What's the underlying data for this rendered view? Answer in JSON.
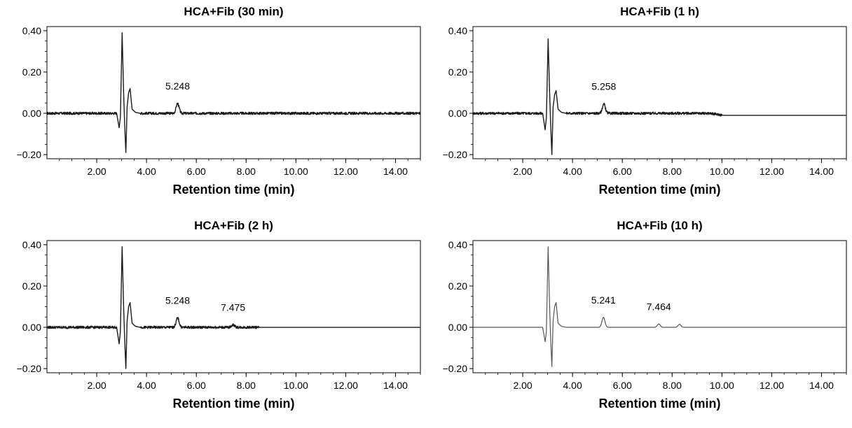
{
  "chart_data": [
    {
      "type": "line",
      "title": "HCA+Fib (30 min)",
      "xlabel": "Retention time (min)",
      "ylabel": "",
      "xlim": [
        0,
        15
      ],
      "ylim": [
        -0.22,
        0.42
      ],
      "xticks": [
        "2.00",
        "4.00",
        "6.00",
        "8.00",
        "10.00",
        "12.00",
        "14.00"
      ],
      "yticks": [
        "0.40",
        "0.20",
        "0.00",
        "−0.20"
      ],
      "noise_until": 15.0,
      "peaks": [
        {
          "x": 5.248,
          "y": 0.048,
          "label": "5.248"
        }
      ],
      "annotations": [
        "5.248"
      ],
      "x": [
        0.0,
        2.8,
        2.9,
        2.95,
        3.02,
        3.08,
        3.12,
        3.17,
        3.22,
        3.28,
        3.34,
        3.42,
        3.55,
        3.75,
        5.248,
        15.0
      ],
      "y": [
        0.0,
        0.0,
        -0.07,
        -0.02,
        0.39,
        0.1,
        -0.05,
        -0.19,
        0.03,
        0.1,
        0.12,
        0.02,
        0.005,
        0.0,
        0.048,
        0.0
      ]
    },
    {
      "type": "line",
      "title": "HCA+Fib (1 h)",
      "xlabel": "Retention time (min)",
      "ylabel": "",
      "xlim": [
        0,
        15
      ],
      "ylim": [
        -0.22,
        0.42
      ],
      "xticks": [
        "2.00",
        "4.00",
        "6.00",
        "8.00",
        "10.00",
        "12.00",
        "14.00"
      ],
      "yticks": [
        "0.40",
        "0.20",
        "0.00",
        "−0.20"
      ],
      "noise_until": 10.0,
      "peaks": [
        {
          "x": 5.258,
          "y": 0.045,
          "label": "5.258"
        }
      ],
      "annotations": [
        "5.258"
      ],
      "x": [
        0.0,
        2.8,
        2.9,
        2.95,
        3.02,
        3.08,
        3.12,
        3.17,
        3.22,
        3.28,
        3.34,
        3.42,
        3.55,
        3.75,
        5.258,
        10.0,
        15.0
      ],
      "y": [
        0.0,
        0.0,
        -0.08,
        -0.02,
        0.36,
        0.1,
        -0.05,
        -0.2,
        0.03,
        0.09,
        0.11,
        0.02,
        0.005,
        0.0,
        0.045,
        -0.01,
        -0.01
      ]
    },
    {
      "type": "line",
      "title": "HCA+Fib (2 h)",
      "xlabel": "Retention time (min)",
      "ylabel": "",
      "xlim": [
        0,
        15
      ],
      "ylim": [
        -0.22,
        0.42
      ],
      "xticks": [
        "2.00",
        "4.00",
        "6.00",
        "8.00",
        "10.00",
        "12.00",
        "14.00"
      ],
      "yticks": [
        "0.40",
        "0.20",
        "0.00",
        "−0.20"
      ],
      "noise_until": 8.5,
      "peaks": [
        {
          "x": 5.248,
          "y": 0.045,
          "label": "5.248"
        },
        {
          "x": 7.475,
          "y": 0.012,
          "label": "7.475"
        }
      ],
      "annotations": [
        "5.248",
        "7.475"
      ],
      "x": [
        0.0,
        2.8,
        2.9,
        2.95,
        3.02,
        3.08,
        3.12,
        3.17,
        3.22,
        3.28,
        3.34,
        3.42,
        3.55,
        3.75,
        5.248,
        7.475,
        15.0
      ],
      "y": [
        0.0,
        0.0,
        -0.08,
        -0.02,
        0.39,
        0.1,
        -0.05,
        -0.2,
        0.03,
        0.1,
        0.12,
        0.02,
        0.005,
        0.0,
        0.045,
        0.012,
        0.0
      ]
    },
    {
      "type": "line",
      "title": "HCA+Fib (10 h)",
      "xlabel": "Retention time (min)",
      "ylabel": "",
      "xlim": [
        0,
        15
      ],
      "ylim": [
        -0.22,
        0.42
      ],
      "xticks": [
        "2.00",
        "4.00",
        "6.00",
        "8.00",
        "10.00",
        "12.00",
        "14.00"
      ],
      "yticks": [
        "0.40",
        "0.20",
        "0.00",
        "−0.20"
      ],
      "noise_until": 0,
      "peaks": [
        {
          "x": 5.241,
          "y": 0.048,
          "label": "5.241"
        },
        {
          "x": 7.464,
          "y": 0.016,
          "label": "7.464"
        },
        {
          "x": 8.3,
          "y": 0.014,
          "label": ""
        }
      ],
      "annotations": [
        "5.241",
        "7.464"
      ],
      "x": [
        0.0,
        2.8,
        2.9,
        2.95,
        3.02,
        3.08,
        3.12,
        3.17,
        3.22,
        3.28,
        3.34,
        3.42,
        3.55,
        3.75,
        5.241,
        7.464,
        8.3,
        15.0
      ],
      "y": [
        0.0,
        0.0,
        -0.07,
        -0.02,
        0.39,
        0.1,
        -0.05,
        -0.19,
        0.03,
        0.1,
        0.12,
        0.02,
        0.005,
        0.0,
        0.048,
        0.016,
        0.014,
        0.0
      ]
    }
  ],
  "colors": {
    "trace_dark": "#1a1a1a",
    "trace_light": "#555555",
    "axis": "#000000"
  }
}
